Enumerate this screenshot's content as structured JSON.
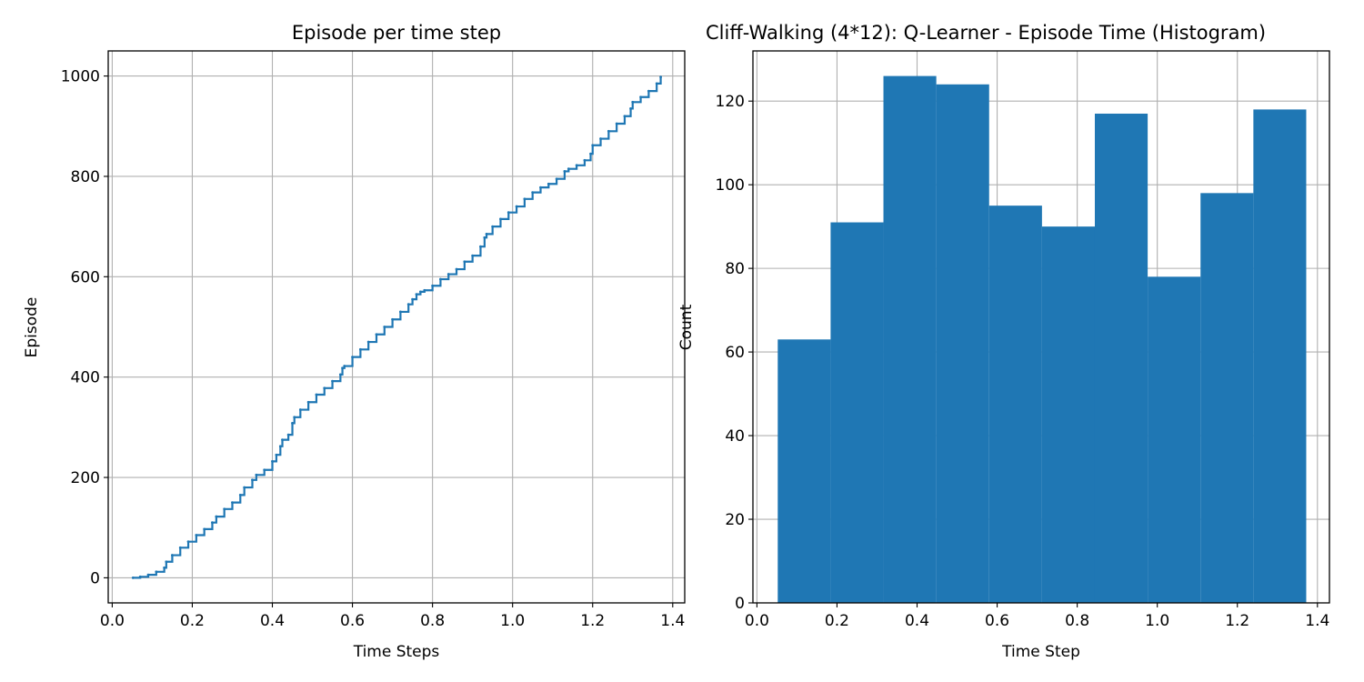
{
  "chart_data": [
    {
      "type": "line",
      "title": "Episode per time step",
      "xlabel": "Time Steps",
      "ylabel": "Episode",
      "xlim": [
        -0.01,
        1.43
      ],
      "ylim": [
        -50,
        1050
      ],
      "xticks": [
        0.0,
        0.2,
        0.4,
        0.6,
        0.8,
        1.0,
        1.2,
        1.4
      ],
      "xtick_labels": [
        "0.0",
        "0.2",
        "0.4",
        "0.6",
        "0.8",
        "1.0",
        "1.2",
        "1.4"
      ],
      "yticks": [
        0,
        200,
        400,
        600,
        800,
        1000
      ],
      "ytick_labels": [
        "0",
        "200",
        "400",
        "600",
        "800",
        "1000"
      ],
      "grid": true,
      "color": "#1f77b4",
      "series": [
        {
          "x": [
            0.052,
            0.07,
            0.09,
            0.11,
            0.13,
            0.135,
            0.15,
            0.17,
            0.19,
            0.21,
            0.23,
            0.25,
            0.26,
            0.28,
            0.3,
            0.32,
            0.33,
            0.35,
            0.36,
            0.38,
            0.4,
            0.41,
            0.42,
            0.425,
            0.44,
            0.45,
            0.455,
            0.47,
            0.49,
            0.51,
            0.53,
            0.55,
            0.57,
            0.575,
            0.58,
            0.6,
            0.62,
            0.64,
            0.66,
            0.68,
            0.7,
            0.72,
            0.74,
            0.75,
            0.76,
            0.77,
            0.78,
            0.8,
            0.82,
            0.84,
            0.86,
            0.88,
            0.9,
            0.92,
            0.93,
            0.935,
            0.95,
            0.97,
            0.99,
            1.01,
            1.03,
            1.05,
            1.07,
            1.09,
            1.11,
            1.13,
            1.14,
            1.16,
            1.18,
            1.195,
            1.2,
            1.22,
            1.24,
            1.26,
            1.28,
            1.295,
            1.3,
            1.32,
            1.34,
            1.36,
            1.37
          ],
          "y": [
            0,
            2,
            6,
            12,
            20,
            32,
            45,
            60,
            72,
            85,
            97,
            110,
            122,
            137,
            150,
            165,
            180,
            195,
            205,
            215,
            232,
            245,
            262,
            275,
            285,
            308,
            320,
            335,
            350,
            365,
            378,
            392,
            405,
            418,
            422,
            440,
            455,
            470,
            485,
            500,
            515,
            530,
            545,
            555,
            565,
            570,
            573,
            582,
            595,
            605,
            615,
            630,
            642,
            660,
            678,
            685,
            700,
            715,
            728,
            740,
            755,
            768,
            778,
            785,
            795,
            810,
            815,
            822,
            832,
            845,
            862,
            875,
            890,
            905,
            920,
            935,
            948,
            958,
            970,
            985,
            998
          ]
        }
      ]
    },
    {
      "type": "bar",
      "title": "Cliff-Walking (4*12): Q-Learner - Episode Time (Histogram)",
      "xlabel": "Time Step",
      "ylabel": "Count",
      "xlim": [
        -0.01,
        1.43
      ],
      "ylim": [
        0,
        132
      ],
      "xticks": [
        0.0,
        0.2,
        0.4,
        0.6,
        0.8,
        1.0,
        1.2,
        1.4
      ],
      "xtick_labels": [
        "0.0",
        "0.2",
        "0.4",
        "0.6",
        "0.8",
        "1.0",
        "1.2",
        "1.4"
      ],
      "yticks": [
        0,
        20,
        40,
        60,
        80,
        100,
        120
      ],
      "ytick_labels": [
        "0",
        "20",
        "40",
        "60",
        "80",
        "100",
        "120"
      ],
      "grid": true,
      "color": "#1f77b4",
      "bin_edges": [
        0.052,
        0.184,
        0.316,
        0.448,
        0.58,
        0.712,
        0.844,
        0.976,
        1.108,
        1.24,
        1.372
      ],
      "values": [
        63,
        91,
        126,
        124,
        95,
        90,
        117,
        78,
        98,
        118
      ]
    }
  ]
}
